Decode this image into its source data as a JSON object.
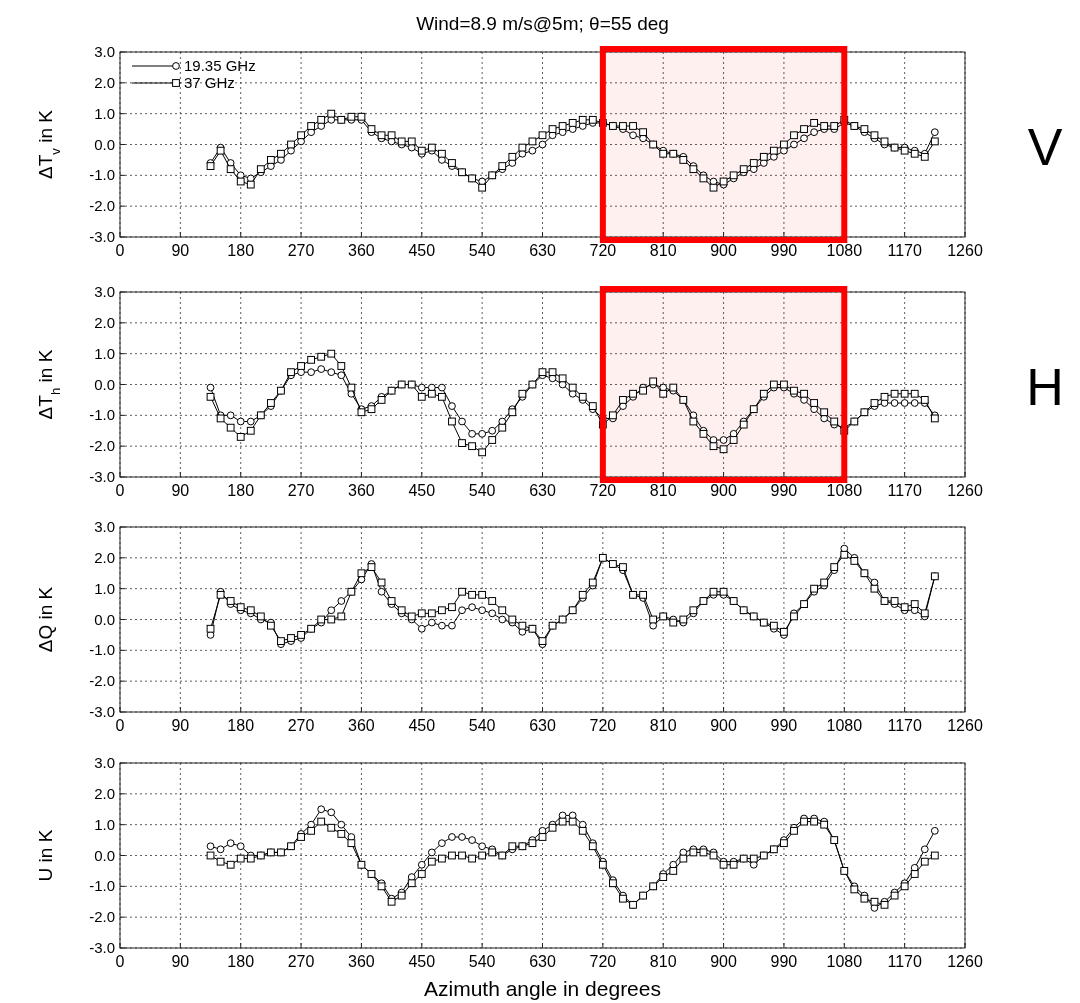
{
  "chart_data": [
    {
      "type": "line",
      "title": "Wind=8.9 m/s@5m; θ=55 deg",
      "ylabel": "ΔT$_{v}$ in K",
      "legend": "top left",
      "grid": true,
      "line_style": "solid",
      "annotations": [
        "V"
      ],
      "bands": [
        {
          "axis": "x",
          "from": 720,
          "to": 1080,
          "color": "#ff0000"
        }
      ],
      "xlim": [
        0,
        1260
      ],
      "xticks": [
        0,
        90,
        180,
        270,
        360,
        450,
        540,
        630,
        720,
        810,
        900,
        990,
        1080,
        1170,
        1260
      ],
      "ylim": [
        -3,
        3
      ],
      "yticks": [
        {
          "value": -3,
          "label": "-3.0"
        },
        {
          "value": -2,
          "label": "-2.0"
        },
        {
          "value": -1,
          "label": "-1.0"
        },
        {
          "value": 0,
          "label": "0.0"
        },
        {
          "value": 1,
          "label": "1.0"
        },
        {
          "value": 2,
          "label": "2.0"
        },
        {
          "value": 3,
          "label": "3.0"
        }
      ],
      "x": [
        135,
        150,
        165,
        180,
        195,
        210,
        225,
        240,
        255,
        270,
        285,
        300,
        315,
        330,
        345,
        360,
        375,
        390,
        405,
        420,
        435,
        450,
        465,
        480,
        495,
        510,
        525,
        540,
        555,
        570,
        585,
        600,
        615,
        630,
        645,
        660,
        675,
        690,
        705,
        720,
        735,
        750,
        765,
        780,
        795,
        810,
        825,
        840,
        855,
        870,
        885,
        900,
        915,
        930,
        945,
        960,
        975,
        990,
        1005,
        1020,
        1035,
        1050,
        1065,
        1080,
        1095,
        1110,
        1125,
        1140,
        1155,
        1170,
        1185,
        1200,
        1215
      ],
      "series": [
        {
          "name": "19.35 GHz",
          "color": "#000000",
          "marker": "circle",
          "values": [
            -0.6,
            -0.1,
            -0.6,
            -1.0,
            -1.1,
            -0.9,
            -0.7,
            -0.5,
            -0.2,
            0.1,
            0.4,
            0.6,
            0.8,
            0.8,
            0.8,
            0.8,
            0.4,
            0.2,
            0.1,
            0.0,
            -0.1,
            -0.3,
            -0.2,
            -0.5,
            -0.7,
            -0.9,
            -1.1,
            -1.2,
            -1.0,
            -0.8,
            -0.6,
            -0.3,
            -0.2,
            0.0,
            0.3,
            0.4,
            0.5,
            0.6,
            0.7,
            0.7,
            0.6,
            0.5,
            0.3,
            0.2,
            0.0,
            -0.2,
            -0.3,
            -0.4,
            -0.7,
            -1.0,
            -1.2,
            -1.3,
            -1.1,
            -0.9,
            -0.8,
            -0.6,
            -0.4,
            -0.2,
            0.0,
            0.2,
            0.4,
            0.5,
            0.5,
            0.7,
            0.6,
            0.4,
            0.2,
            0.0,
            -0.1,
            -0.1,
            -0.2,
            -0.3,
            0.4
          ]
        },
        {
          "name": "37 GHz",
          "color": "#000000",
          "marker": "square",
          "values": [
            -0.7,
            -0.2,
            -0.8,
            -1.2,
            -1.3,
            -0.8,
            -0.5,
            -0.3,
            0.0,
            0.3,
            0.6,
            0.8,
            1.0,
            0.8,
            0.9,
            0.9,
            0.5,
            0.3,
            0.3,
            0.1,
            0.1,
            -0.2,
            -0.1,
            -0.3,
            -0.6,
            -0.9,
            -1.1,
            -1.4,
            -1.0,
            -0.7,
            -0.4,
            -0.1,
            0.1,
            0.3,
            0.5,
            0.6,
            0.7,
            0.8,
            0.8,
            0.7,
            0.6,
            0.6,
            0.6,
            0.4,
            0.0,
            -0.3,
            -0.3,
            -0.5,
            -0.8,
            -1.1,
            -1.4,
            -1.2,
            -1.0,
            -0.8,
            -0.6,
            -0.4,
            -0.2,
            0.0,
            0.3,
            0.5,
            0.7,
            0.6,
            0.6,
            0.8,
            0.6,
            0.5,
            0.3,
            0.1,
            -0.1,
            -0.2,
            -0.3,
            -0.4,
            0.1
          ]
        }
      ]
    },
    {
      "type": "line",
      "ylabel": "ΔT$_{h}$ in K",
      "grid": true,
      "line_style": "solid",
      "annotations": [
        "H"
      ],
      "bands": [
        {
          "axis": "x",
          "from": 720,
          "to": 1080,
          "color": "#ff0000"
        }
      ],
      "xlim": [
        0,
        1260
      ],
      "xticks": [
        0,
        90,
        180,
        270,
        360,
        450,
        540,
        630,
        720,
        810,
        900,
        990,
        1080,
        1170,
        1260
      ],
      "ylim": [
        -3,
        3
      ],
      "yticks": [
        {
          "value": -3,
          "label": "-3.0"
        },
        {
          "value": -2,
          "label": "-2.0"
        },
        {
          "value": -1,
          "label": "-1.0"
        },
        {
          "value": 0,
          "label": "0.0"
        },
        {
          "value": 1,
          "label": "1.0"
        },
        {
          "value": 2,
          "label": "2.0"
        },
        {
          "value": 3,
          "label": "3.0"
        }
      ],
      "x": [
        135,
        150,
        165,
        180,
        195,
        210,
        225,
        240,
        255,
        270,
        285,
        300,
        315,
        330,
        345,
        360,
        375,
        390,
        405,
        420,
        435,
        450,
        465,
        480,
        495,
        510,
        525,
        540,
        555,
        570,
        585,
        600,
        615,
        630,
        645,
        660,
        675,
        690,
        705,
        720,
        735,
        750,
        765,
        780,
        795,
        810,
        825,
        840,
        855,
        870,
        885,
        900,
        915,
        930,
        945,
        960,
        975,
        990,
        1005,
        1020,
        1035,
        1050,
        1065,
        1080,
        1095,
        1110,
        1125,
        1140,
        1155,
        1170,
        1185,
        1200,
        1215
      ],
      "series": [
        {
          "color": "#000000",
          "marker": "circle",
          "values": [
            -0.1,
            -1.0,
            -1.0,
            -1.2,
            -1.2,
            -1.0,
            -0.7,
            -0.2,
            0.3,
            0.4,
            0.4,
            0.5,
            0.4,
            0.3,
            -0.3,
            -0.8,
            -0.7,
            -0.4,
            -0.2,
            0.0,
            0.0,
            -0.1,
            -0.1,
            -0.1,
            -0.7,
            -1.2,
            -1.6,
            -1.6,
            -1.5,
            -1.2,
            -0.8,
            -0.4,
            0.0,
            0.3,
            0.2,
            0.0,
            -0.3,
            -0.5,
            -0.8,
            -1.1,
            -1.1,
            -0.7,
            -0.4,
            -0.1,
            0.0,
            -0.1,
            -0.2,
            -0.5,
            -1.0,
            -1.5,
            -1.8,
            -1.8,
            -1.6,
            -1.2,
            -0.8,
            -0.4,
            -0.1,
            -0.1,
            -0.3,
            -0.5,
            -0.8,
            -1.1,
            -1.3,
            -1.4,
            -1.2,
            -0.9,
            -0.7,
            -0.6,
            -0.6,
            -0.6,
            -0.6,
            -0.6,
            -1.0
          ]
        },
        {
          "color": "#000000",
          "marker": "square",
          "values": [
            -0.4,
            -1.1,
            -1.4,
            -1.7,
            -1.5,
            -1.0,
            -0.6,
            -0.2,
            0.4,
            0.6,
            0.8,
            0.9,
            1.0,
            0.6,
            -0.1,
            -0.9,
            -0.8,
            -0.5,
            -0.2,
            0.0,
            0.0,
            -0.4,
            -0.3,
            -0.4,
            -1.2,
            -1.9,
            -2.0,
            -2.2,
            -1.8,
            -1.4,
            -0.9,
            -0.3,
            0.0,
            0.4,
            0.4,
            0.2,
            -0.1,
            -0.4,
            -0.7,
            -1.3,
            -1.0,
            -0.5,
            -0.3,
            -0.2,
            0.1,
            -0.3,
            -0.1,
            -0.5,
            -1.2,
            -1.6,
            -2.0,
            -2.1,
            -1.8,
            -1.3,
            -0.8,
            -0.3,
            0.0,
            0.0,
            -0.2,
            -0.3,
            -0.6,
            -0.9,
            -1.2,
            -1.5,
            -1.2,
            -0.9,
            -0.6,
            -0.4,
            -0.3,
            -0.3,
            -0.3,
            -0.5,
            -1.1
          ]
        }
      ]
    },
    {
      "type": "line",
      "ylabel": "ΔQ in K",
      "grid": true,
      "line_style": "solid",
      "xlim": [
        0,
        1260
      ],
      "xticks": [
        0,
        90,
        180,
        270,
        360,
        450,
        540,
        630,
        720,
        810,
        900,
        990,
        1080,
        1170,
        1260
      ],
      "ylim": [
        -3,
        3
      ],
      "yticks": [
        {
          "value": -3,
          "label": "-3.0"
        },
        {
          "value": -2,
          "label": "-2.0"
        },
        {
          "value": -1,
          "label": "-1.0"
        },
        {
          "value": 0,
          "label": "0.0"
        },
        {
          "value": 1,
          "label": "1.0"
        },
        {
          "value": 2,
          "label": "2.0"
        },
        {
          "value": 3,
          "label": "3.0"
        }
      ],
      "x": [
        135,
        150,
        165,
        180,
        195,
        210,
        225,
        240,
        255,
        270,
        285,
        300,
        315,
        330,
        345,
        360,
        375,
        390,
        405,
        420,
        435,
        450,
        465,
        480,
        495,
        510,
        525,
        540,
        555,
        570,
        585,
        600,
        615,
        630,
        645,
        660,
        675,
        690,
        705,
        720,
        735,
        750,
        765,
        780,
        795,
        810,
        825,
        840,
        855,
        870,
        885,
        900,
        915,
        930,
        945,
        960,
        975,
        990,
        1005,
        1020,
        1035,
        1050,
        1065,
        1080,
        1095,
        1110,
        1125,
        1140,
        1155,
        1170,
        1185,
        1200,
        1215
      ],
      "series": [
        {
          "color": "#000000",
          "marker": "circle",
          "values": [
            -0.5,
            0.9,
            0.5,
            0.3,
            0.2,
            0.0,
            -0.1,
            -0.8,
            -0.7,
            -0.6,
            -0.3,
            -0.1,
            0.3,
            0.6,
            0.9,
            1.3,
            1.8,
            0.9,
            0.5,
            0.2,
            0.0,
            -0.3,
            -0.1,
            -0.2,
            -0.2,
            0.3,
            0.4,
            0.3,
            0.2,
            0.0,
            -0.1,
            -0.4,
            -0.3,
            -0.8,
            -0.2,
            0.0,
            0.3,
            0.7,
            1.1,
            2.0,
            1.8,
            1.6,
            0.8,
            0.7,
            -0.2,
            0.1,
            0.0,
            -0.1,
            0.2,
            0.6,
            0.8,
            0.8,
            0.6,
            0.3,
            0.1,
            -0.1,
            -0.3,
            -0.5,
            0.2,
            0.5,
            0.9,
            1.1,
            1.6,
            2.3,
            2.0,
            1.5,
            1.2,
            0.6,
            0.5,
            0.3,
            0.3,
            0.1,
            1.4
          ]
        },
        {
          "color": "#000000",
          "marker": "square",
          "values": [
            -0.3,
            0.8,
            0.6,
            0.4,
            0.3,
            0.1,
            -0.2,
            -0.7,
            -0.6,
            -0.5,
            -0.3,
            0.0,
            0.0,
            0.1,
            0.9,
            1.5,
            1.7,
            1.2,
            0.6,
            0.3,
            0.1,
            0.2,
            0.2,
            0.3,
            0.4,
            0.9,
            0.8,
            0.8,
            0.6,
            0.3,
            0.0,
            -0.2,
            -0.3,
            -0.7,
            -0.2,
            0.0,
            0.3,
            0.8,
            1.2,
            2.0,
            1.8,
            1.7,
            0.8,
            0.8,
            0.0,
            0.1,
            -0.1,
            0.0,
            0.3,
            0.6,
            0.9,
            0.9,
            0.6,
            0.3,
            0.1,
            -0.1,
            -0.2,
            -0.4,
            0.1,
            0.5,
            1.0,
            1.2,
            1.7,
            2.1,
            1.9,
            1.5,
            1.0,
            0.6,
            0.6,
            0.4,
            0.5,
            0.2,
            1.4
          ]
        }
      ]
    },
    {
      "type": "line",
      "ylabel": "U in K",
      "xlabel": "Azimuth angle in degrees",
      "grid": true,
      "line_style": "solid",
      "xlim": [
        0,
        1260
      ],
      "xticks": [
        0,
        90,
        180,
        270,
        360,
        450,
        540,
        630,
        720,
        810,
        900,
        990,
        1080,
        1170,
        1260
      ],
      "ylim": [
        -3,
        3
      ],
      "yticks": [
        {
          "value": -3,
          "label": "-3.0"
        },
        {
          "value": -2,
          "label": "-2.0"
        },
        {
          "value": -1,
          "label": "-1.0"
        },
        {
          "value": 0,
          "label": "0.0"
        },
        {
          "value": 1,
          "label": "1.0"
        },
        {
          "value": 2,
          "label": "2.0"
        },
        {
          "value": 3,
          "label": "3.0"
        }
      ],
      "x": [
        135,
        150,
        165,
        180,
        195,
        210,
        225,
        240,
        255,
        270,
        285,
        300,
        315,
        330,
        345,
        360,
        375,
        390,
        405,
        420,
        435,
        450,
        465,
        480,
        495,
        510,
        525,
        540,
        555,
        570,
        585,
        600,
        615,
        630,
        645,
        660,
        675,
        690,
        705,
        720,
        735,
        750,
        765,
        780,
        795,
        810,
        825,
        840,
        855,
        870,
        885,
        900,
        915,
        930,
        945,
        960,
        975,
        990,
        1005,
        1020,
        1035,
        1050,
        1065,
        1080,
        1095,
        1110,
        1125,
        1140,
        1155,
        1170,
        1185,
        1200,
        1215
      ],
      "series": [
        {
          "color": "#000000",
          "marker": "circle",
          "values": [
            0.3,
            0.2,
            0.4,
            0.3,
            0.0,
            0.0,
            0.1,
            0.1,
            0.3,
            0.7,
            1.0,
            1.5,
            1.4,
            1.0,
            0.6,
            -0.3,
            -0.6,
            -0.9,
            -1.4,
            -1.2,
            -0.7,
            -0.3,
            0.1,
            0.4,
            0.6,
            0.6,
            0.5,
            0.3,
            0.2,
            0.0,
            0.2,
            0.3,
            0.5,
            0.8,
            1.0,
            1.3,
            1.3,
            1.0,
            0.4,
            -0.2,
            -0.8,
            -1.3,
            -1.6,
            -1.3,
            -1.0,
            -0.6,
            -0.3,
            0.1,
            0.2,
            0.2,
            0.1,
            -0.2,
            -0.2,
            -0.1,
            -0.3,
            0.0,
            0.2,
            0.5,
            0.9,
            1.2,
            1.2,
            1.1,
            0.5,
            -0.5,
            -1.0,
            -1.3,
            -1.7,
            -1.5,
            -1.2,
            -0.9,
            -0.4,
            0.2,
            0.8
          ]
        },
        {
          "color": "#000000",
          "marker": "square",
          "values": [
            0.0,
            -0.2,
            -0.3,
            -0.1,
            -0.1,
            0.0,
            0.1,
            0.1,
            0.3,
            0.6,
            0.8,
            1.1,
            0.9,
            0.7,
            0.4,
            -0.3,
            -0.6,
            -1.0,
            -1.5,
            -1.3,
            -0.9,
            -0.6,
            -0.2,
            -0.1,
            0.0,
            0.0,
            -0.1,
            0.0,
            0.1,
            0.0,
            0.3,
            0.3,
            0.4,
            0.6,
            0.9,
            1.1,
            1.1,
            0.8,
            0.3,
            -0.3,
            -0.9,
            -1.4,
            -1.6,
            -1.3,
            -1.0,
            -0.7,
            -0.5,
            -0.1,
            0.1,
            0.1,
            0.0,
            -0.3,
            -0.3,
            -0.1,
            -0.1,
            0.0,
            0.2,
            0.4,
            0.8,
            1.1,
            1.1,
            1.0,
            0.5,
            -0.5,
            -1.1,
            -1.4,
            -1.5,
            -1.6,
            -1.3,
            -1.0,
            -0.6,
            -0.2,
            0.0
          ]
        }
      ]
    }
  ]
}
